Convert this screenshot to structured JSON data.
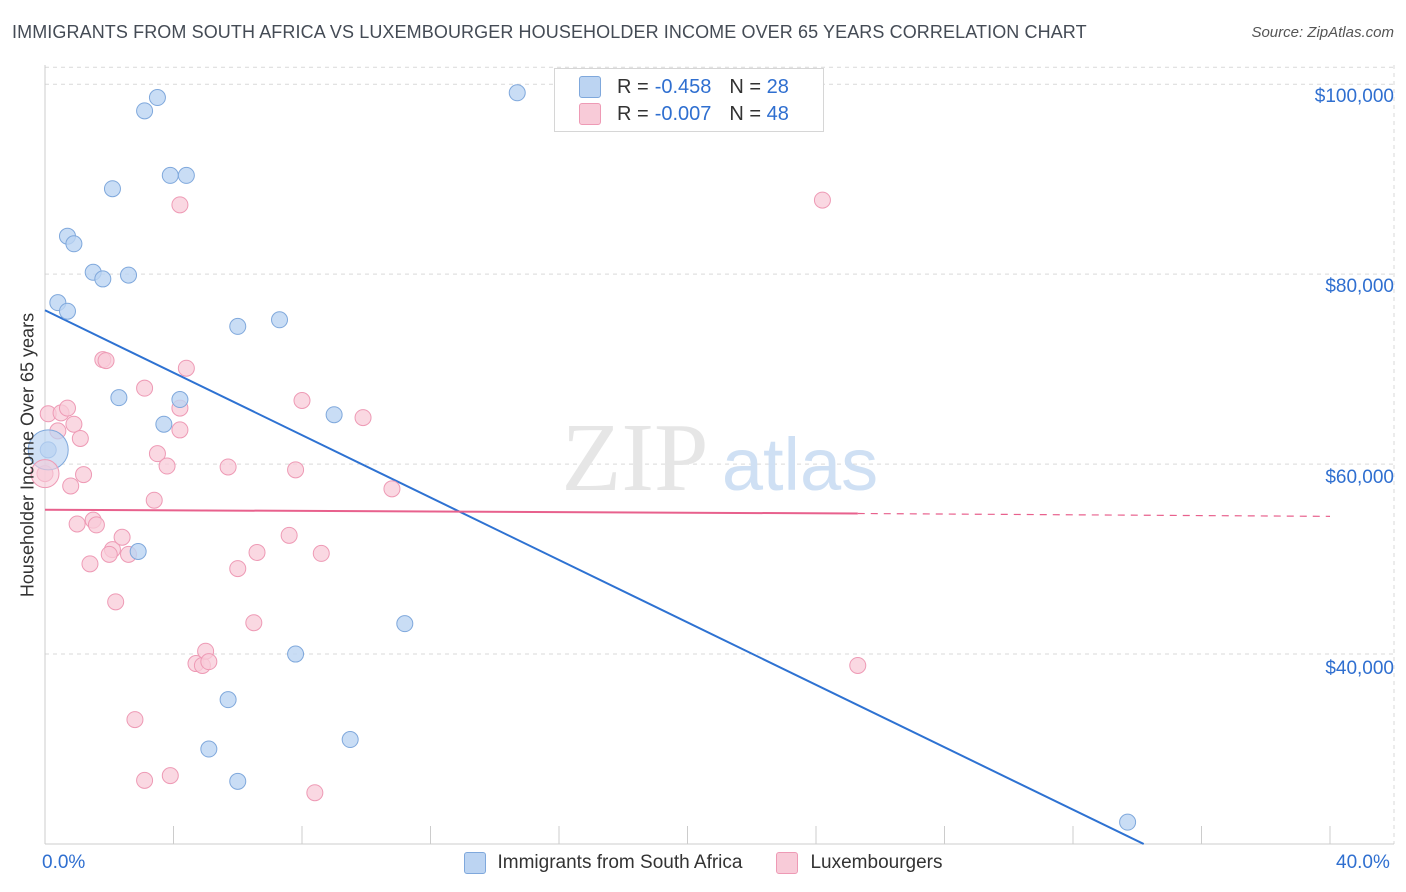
{
  "header": {
    "title": "IMMIGRANTS FROM SOUTH AFRICA VS LUXEMBOURGER HOUSEHOLDER INCOME OVER 65 YEARS CORRELATION CHART",
    "source": "Source: ZipAtlas.com"
  },
  "legend_box": {
    "rows": [
      {
        "r_label": "R =",
        "r_value": "-0.458",
        "n_label": "N =",
        "n_value": "28",
        "color": "#a9c8ef"
      },
      {
        "r_label": "R =",
        "r_value": "-0.007",
        "n_label": "N =",
        "n_value": "48",
        "color": "#f6b8cb"
      }
    ]
  },
  "bottom_legend": [
    {
      "label": "Immigrants from South Africa",
      "color": "#a9c8ef"
    },
    {
      "label": "Luxembourgers",
      "color": "#f6b8cb"
    }
  ],
  "watermark": {
    "zip": "ZIP",
    "atlas": "atlas"
  },
  "colors": {
    "blue_fill": "#bcd4f2",
    "blue_stroke": "#7fa8dc",
    "blue_line": "#2e72d2",
    "pink_fill": "#f8cbd8",
    "pink_stroke": "#ee9ab5",
    "pink_line": "#e8618d",
    "grid": "#d9d9d9",
    "axis_label": "#2f6fd0"
  },
  "chart_data": {
    "type": "scatter",
    "title": "IMMIGRANTS FROM SOUTH AFRICA VS LUXEMBOURGER HOUSEHOLDER INCOME OVER 65 YEARS CORRELATION CHART",
    "xlabel": "",
    "ylabel": "Householder Income Over 65 years",
    "x_tick_labels": [
      "0.0%",
      "40.0%"
    ],
    "y_tick_labels": [
      "$40,000",
      "$60,000",
      "$80,000",
      "$100,000"
    ],
    "y_ticks": [
      40000,
      60000,
      80000,
      100000
    ],
    "xlim": [
      0,
      40
    ],
    "ylim": [
      20000,
      101500
    ],
    "series": [
      {
        "name": "Immigrants from South Africa",
        "r": -0.458,
        "n": 28,
        "points": [
          [
            0.1,
            61500
          ],
          [
            0.4,
            77000
          ],
          [
            0.7,
            76100
          ],
          [
            0.7,
            84000
          ],
          [
            0.9,
            83200
          ],
          [
            1.5,
            80200
          ],
          [
            1.8,
            79500
          ],
          [
            2.1,
            89000
          ],
          [
            2.3,
            67000
          ],
          [
            2.6,
            79900
          ],
          [
            3.1,
            97200
          ],
          [
            3.5,
            98600
          ],
          [
            3.9,
            90400
          ],
          [
            4.4,
            90400
          ],
          [
            3.7,
            64200
          ],
          [
            4.2,
            66800
          ],
          [
            2.9,
            50800
          ],
          [
            6.0,
            74500
          ],
          [
            7.3,
            75200
          ],
          [
            9.0,
            65200
          ],
          [
            14.7,
            99100
          ],
          [
            7.8,
            40000
          ],
          [
            11.2,
            43200
          ],
          [
            5.7,
            35200
          ],
          [
            5.1,
            30000
          ],
          [
            6.0,
            26600
          ],
          [
            9.5,
            31000
          ],
          [
            33.7,
            22300
          ]
        ],
        "trend": {
          "x": [
            0,
            34.2
          ],
          "y": [
            76200,
            20000
          ]
        }
      },
      {
        "name": "Luxembourgers",
        "r": -0.007,
        "n": 48,
        "points": [
          [
            0.0,
            59000
          ],
          [
            0.1,
            65300
          ],
          [
            0.4,
            63500
          ],
          [
            0.5,
            65400
          ],
          [
            0.7,
            65900
          ],
          [
            0.9,
            64200
          ],
          [
            1.1,
            62700
          ],
          [
            1.2,
            58900
          ],
          [
            0.8,
            57700
          ],
          [
            1.0,
            53700
          ],
          [
            1.5,
            54100
          ],
          [
            1.6,
            53600
          ],
          [
            1.4,
            49500
          ],
          [
            2.1,
            51000
          ],
          [
            2.0,
            50500
          ],
          [
            2.6,
            50500
          ],
          [
            2.4,
            52300
          ],
          [
            2.2,
            45500
          ],
          [
            1.8,
            71000
          ],
          [
            1.9,
            70900
          ],
          [
            3.1,
            68000
          ],
          [
            3.5,
            61100
          ],
          [
            3.4,
            56200
          ],
          [
            3.8,
            59800
          ],
          [
            4.2,
            63600
          ],
          [
            4.2,
            65900
          ],
          [
            4.4,
            70100
          ],
          [
            4.2,
            87300
          ],
          [
            5.7,
            59700
          ],
          [
            6.0,
            49000
          ],
          [
            6.6,
            50700
          ],
          [
            6.5,
            43300
          ],
          [
            7.6,
            52500
          ],
          [
            7.8,
            59400
          ],
          [
            8.0,
            66700
          ],
          [
            8.6,
            50600
          ],
          [
            9.9,
            64900
          ],
          [
            10.8,
            57400
          ],
          [
            4.7,
            39000
          ],
          [
            4.9,
            38800
          ],
          [
            5.0,
            40300
          ],
          [
            5.1,
            39200
          ],
          [
            2.8,
            33100
          ],
          [
            3.1,
            26700
          ],
          [
            3.9,
            27200
          ],
          [
            8.4,
            25400
          ],
          [
            24.2,
            87800
          ],
          [
            25.3,
            38800
          ]
        ],
        "trend": {
          "x": [
            0,
            25.3
          ],
          "y": [
            55200,
            54800
          ]
        },
        "trend_dashed": {
          "x": [
            25.3,
            40
          ],
          "y": [
            54800,
            54500
          ]
        }
      }
    ],
    "grid": true,
    "legend": "top-center"
  }
}
